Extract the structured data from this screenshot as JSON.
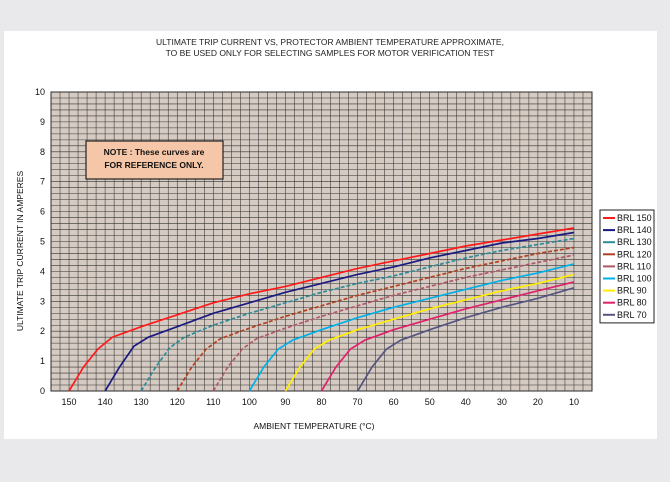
{
  "chart_data": {
    "type": "line",
    "title_lines": [
      "ULTIMATE TRIP CURRENT VS, PROTECTOR AMBIENT TEMPERATURE APPROXIMATE,",
      "TO BE USED ONLY FOR SELECTING SAMPLES FOR MOTOR VERIFICATION TEST"
    ],
    "xlabel": "AMBIENT TEMPERATURE (°C)",
    "ylabel": "ULTIMATE TRIP CURRENT IN  AMPERES",
    "x_ticks": [
      150,
      140,
      130,
      120,
      110,
      100,
      90,
      80,
      70,
      60,
      50,
      40,
      30,
      20,
      10
    ],
    "y_ticks": [
      0,
      1,
      2,
      3,
      4,
      5,
      6,
      7,
      8,
      9,
      10
    ],
    "xlim": [
      155,
      5
    ],
    "ylim": [
      0,
      10
    ],
    "grid": true,
    "legend_position": "right",
    "note": {
      "lines": [
        "NOTE : These curves are",
        "FOR REFERENCE ONLY."
      ],
      "fill": "#f5c6a8"
    },
    "series": [
      {
        "name": "BRL 150",
        "color": "#ff1a1a",
        "style": "solid",
        "points": [
          [
            150,
            0
          ],
          [
            146,
            0.8
          ],
          [
            142,
            1.4
          ],
          [
            138,
            1.8
          ],
          [
            130,
            2.15
          ],
          [
            120,
            2.55
          ],
          [
            110,
            2.95
          ],
          [
            100,
            3.25
          ],
          [
            90,
            3.5
          ],
          [
            80,
            3.8
          ],
          [
            70,
            4.1
          ],
          [
            60,
            4.35
          ],
          [
            50,
            4.6
          ],
          [
            40,
            4.85
          ],
          [
            30,
            5.05
          ],
          [
            20,
            5.25
          ],
          [
            10,
            5.45
          ]
        ]
      },
      {
        "name": "BRL 140",
        "color": "#1a1a80",
        "style": "solid",
        "points": [
          [
            140,
            0
          ],
          [
            136,
            0.8
          ],
          [
            132,
            1.5
          ],
          [
            128,
            1.8
          ],
          [
            120,
            2.15
          ],
          [
            110,
            2.6
          ],
          [
            100,
            2.95
          ],
          [
            90,
            3.3
          ],
          [
            80,
            3.6
          ],
          [
            70,
            3.9
          ],
          [
            60,
            4.15
          ],
          [
            50,
            4.45
          ],
          [
            40,
            4.7
          ],
          [
            30,
            4.95
          ],
          [
            20,
            5.1
          ],
          [
            10,
            5.3
          ]
        ]
      },
      {
        "name": "BRL 130",
        "color": "#2e8b9a",
        "style": "dash",
        "points": [
          [
            130,
            0
          ],
          [
            126,
            0.8
          ],
          [
            122,
            1.45
          ],
          [
            118,
            1.8
          ],
          [
            110,
            2.2
          ],
          [
            100,
            2.6
          ],
          [
            90,
            2.95
          ],
          [
            80,
            3.3
          ],
          [
            70,
            3.6
          ],
          [
            60,
            3.85
          ],
          [
            50,
            4.15
          ],
          [
            40,
            4.45
          ],
          [
            30,
            4.7
          ],
          [
            20,
            4.9
          ],
          [
            10,
            5.1
          ]
        ]
      },
      {
        "name": "BRL 120",
        "color": "#b04020",
        "style": "dash",
        "points": [
          [
            120,
            0
          ],
          [
            116,
            0.8
          ],
          [
            112,
            1.4
          ],
          [
            108,
            1.75
          ],
          [
            100,
            2.1
          ],
          [
            90,
            2.5
          ],
          [
            80,
            2.85
          ],
          [
            70,
            3.2
          ],
          [
            60,
            3.5
          ],
          [
            50,
            3.8
          ],
          [
            40,
            4.1
          ],
          [
            30,
            4.35
          ],
          [
            20,
            4.6
          ],
          [
            10,
            4.8
          ]
        ]
      },
      {
        "name": "BRL 110",
        "color": "#b05868",
        "style": "dash",
        "points": [
          [
            110,
            0
          ],
          [
            106,
            0.8
          ],
          [
            102,
            1.4
          ],
          [
            98,
            1.75
          ],
          [
            90,
            2.1
          ],
          [
            80,
            2.5
          ],
          [
            70,
            2.85
          ],
          [
            60,
            3.2
          ],
          [
            50,
            3.5
          ],
          [
            40,
            3.8
          ],
          [
            30,
            4.05
          ],
          [
            20,
            4.3
          ],
          [
            10,
            4.55
          ]
        ]
      },
      {
        "name": "BRL 100",
        "color": "#00b0e8",
        "style": "solid",
        "points": [
          [
            100,
            0
          ],
          [
            96,
            0.8
          ],
          [
            92,
            1.4
          ],
          [
            88,
            1.7
          ],
          [
            80,
            2.05
          ],
          [
            70,
            2.45
          ],
          [
            60,
            2.8
          ],
          [
            50,
            3.1
          ],
          [
            40,
            3.4
          ],
          [
            30,
            3.7
          ],
          [
            20,
            3.95
          ],
          [
            10,
            4.25
          ]
        ]
      },
      {
        "name": "BRL 90",
        "color": "#ffee00",
        "style": "solid",
        "points": [
          [
            90,
            0
          ],
          [
            86,
            0.8
          ],
          [
            82,
            1.4
          ],
          [
            78,
            1.7
          ],
          [
            70,
            2.05
          ],
          [
            60,
            2.4
          ],
          [
            50,
            2.75
          ],
          [
            40,
            3.05
          ],
          [
            30,
            3.35
          ],
          [
            20,
            3.6
          ],
          [
            10,
            3.9
          ]
        ]
      },
      {
        "name": "BRL 80",
        "color": "#e0206a",
        "style": "solid",
        "points": [
          [
            80,
            0
          ],
          [
            76,
            0.8
          ],
          [
            72,
            1.4
          ],
          [
            68,
            1.7
          ],
          [
            60,
            2.05
          ],
          [
            50,
            2.4
          ],
          [
            40,
            2.75
          ],
          [
            30,
            3.05
          ],
          [
            20,
            3.35
          ],
          [
            10,
            3.65
          ]
        ]
      },
      {
        "name": "BRL 70",
        "color": "#555580",
        "style": "solid",
        "points": [
          [
            70,
            0
          ],
          [
            66,
            0.8
          ],
          [
            62,
            1.4
          ],
          [
            58,
            1.7
          ],
          [
            50,
            2.05
          ],
          [
            40,
            2.45
          ],
          [
            30,
            2.8
          ],
          [
            20,
            3.1
          ],
          [
            10,
            3.45
          ]
        ]
      }
    ]
  }
}
